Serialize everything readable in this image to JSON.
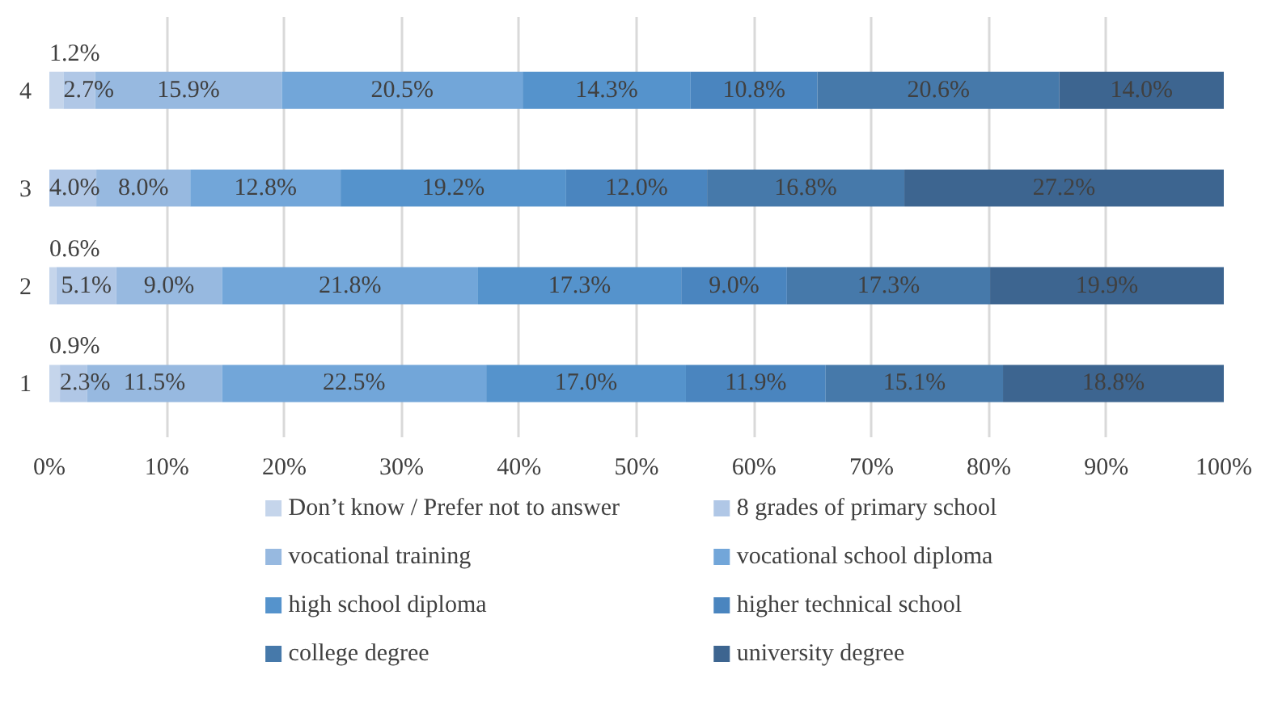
{
  "chart_data": {
    "type": "bar",
    "orientation": "horizontal",
    "stacked": true,
    "categories": [
      "4",
      "3",
      "2",
      "1"
    ],
    "series": [
      {
        "name": "Don’t know / Prefer not to answer",
        "color": "#c5d5eb",
        "values": [
          1.2,
          null,
          0.6,
          0.9
        ],
        "value_labels": [
          "1.2%",
          null,
          "0.6%",
          "0.9%"
        ]
      },
      {
        "name": "8 grades of primary school",
        "color": "#b0c7e6",
        "values": [
          2.7,
          4.0,
          5.1,
          2.3
        ],
        "value_labels": [
          "2.7%",
          "4.0%",
          "5.1%",
          "2.3%"
        ]
      },
      {
        "name": "vocational training",
        "color": "#97b9e0",
        "values": [
          15.9,
          8.0,
          9.0,
          11.5
        ],
        "value_labels": [
          "15.9%",
          "8.0%",
          "9.0%",
          "11.5%"
        ]
      },
      {
        "name": "vocational school diploma",
        "color": "#72a6d9",
        "values": [
          20.5,
          12.8,
          21.8,
          22.5
        ],
        "value_labels": [
          "20.5%",
          "12.8%",
          "21.8%",
          "22.5%"
        ]
      },
      {
        "name": "high school diploma",
        "color": "#5593cc",
        "values": [
          14.3,
          19.2,
          17.3,
          17.0
        ],
        "value_labels": [
          "14.3%",
          "19.2%",
          "17.3%",
          "17.0%"
        ]
      },
      {
        "name": "higher technical school",
        "color": "#4a85bf",
        "values": [
          10.8,
          12.0,
          9.0,
          11.9
        ],
        "value_labels": [
          "10.8%",
          "12.0%",
          "9.0%",
          "11.9%"
        ]
      },
      {
        "name": "college degree",
        "color": "#4679aa",
        "values": [
          20.6,
          16.8,
          17.3,
          15.1
        ],
        "value_labels": [
          "20.6%",
          "16.8%",
          "17.3%",
          "15.1%"
        ]
      },
      {
        "name": "university degree",
        "color": "#3d6590",
        "values": [
          14.0,
          27.2,
          19.9,
          18.8
        ],
        "value_labels": [
          "14.0%",
          "27.2%",
          "19.9%",
          "18.8%"
        ]
      }
    ],
    "xlim": [
      0,
      100
    ],
    "xticks": [
      {
        "value": 0,
        "label": "0%"
      },
      {
        "value": 10,
        "label": "10%"
      },
      {
        "value": 20,
        "label": "20%"
      },
      {
        "value": 30,
        "label": "30%"
      },
      {
        "value": 40,
        "label": "40%"
      },
      {
        "value": 50,
        "label": "50%"
      },
      {
        "value": 60,
        "label": "60%"
      },
      {
        "value": 70,
        "label": "70%"
      },
      {
        "value": 80,
        "label": "80%"
      },
      {
        "value": 90,
        "label": "90%"
      },
      {
        "value": 100,
        "label": "100%"
      }
    ],
    "grid": "x",
    "legend": "bottom"
  }
}
